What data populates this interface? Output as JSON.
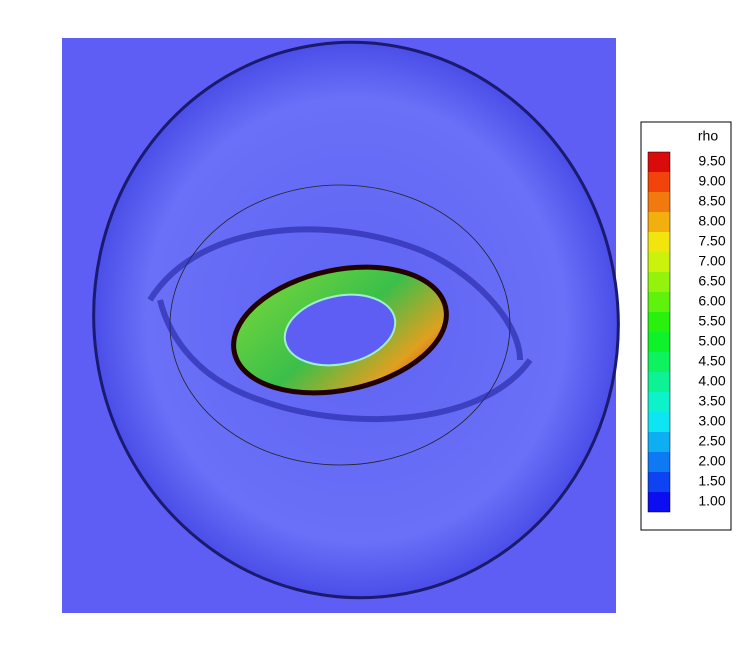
{
  "colorbar": {
    "title": "rho",
    "levels": [
      "9.50",
      "9.00",
      "8.50",
      "8.00",
      "7.50",
      "7.00",
      "6.50",
      "6.00",
      "5.50",
      "5.00",
      "4.50",
      "4.00",
      "3.50",
      "3.00",
      "2.50",
      "2.00",
      "1.50",
      "1.00"
    ]
  }
}
